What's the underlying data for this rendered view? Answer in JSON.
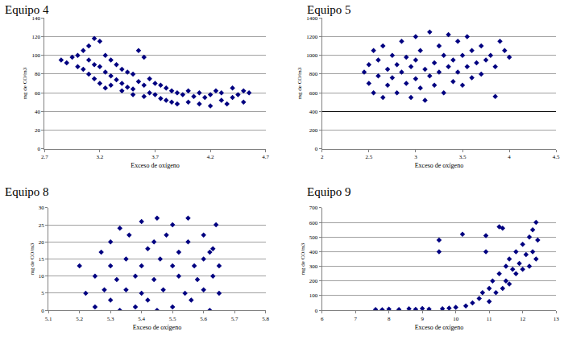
{
  "chart_data": [
    {
      "type": "scatter",
      "title": "Equipo 4",
      "x_label": "Exceso de oxígeno",
      "y_label": "mg de CO/m3",
      "color": "#000080",
      "marker": "diamond",
      "grid": true,
      "xlim": [
        2.7,
        4.7
      ],
      "xticks": [
        2.7,
        3.2,
        3.7,
        4.2,
        4.7
      ],
      "ylim": [
        0,
        140
      ],
      "yticks": [
        0,
        20,
        40,
        60,
        80,
        100,
        120,
        140
      ],
      "x": [
        2.85,
        2.9,
        2.95,
        3.0,
        3.0,
        3.05,
        3.05,
        3.1,
        3.1,
        3.1,
        3.15,
        3.15,
        3.15,
        3.2,
        3.2,
        3.2,
        3.25,
        3.25,
        3.25,
        3.3,
        3.3,
        3.3,
        3.35,
        3.35,
        3.4,
        3.4,
        3.4,
        3.45,
        3.45,
        3.5,
        3.5,
        3.5,
        3.55,
        3.55,
        3.6,
        3.6,
        3.6,
        3.65,
        3.65,
        3.7,
        3.7,
        3.75,
        3.75,
        3.8,
        3.8,
        3.85,
        3.85,
        3.9,
        3.9,
        3.95,
        4.0,
        4.0,
        4.05,
        4.1,
        4.1,
        4.15,
        4.2,
        4.2,
        4.25,
        4.3,
        4.3,
        4.35,
        4.4,
        4.4,
        4.45,
        4.5,
        4.5,
        4.55
      ],
      "values": [
        95,
        92,
        98,
        100,
        88,
        105,
        85,
        110,
        95,
        80,
        118,
        90,
        75,
        115,
        88,
        70,
        100,
        82,
        65,
        95,
        78,
        68,
        90,
        74,
        85,
        70,
        62,
        82,
        66,
        80,
        64,
        58,
        105,
        72,
        98,
        68,
        56,
        75,
        60,
        70,
        58,
        68,
        54,
        65,
        52,
        62,
        50,
        60,
        48,
        58,
        62,
        50,
        56,
        60,
        48,
        55,
        58,
        46,
        62,
        52,
        60,
        48,
        65,
        55,
        58,
        62,
        50,
        60
      ]
    },
    {
      "type": "scatter",
      "title": "Equipo 5",
      "x_label": "Exceso de oxígeno",
      "y_label": "mg de CO/m3",
      "color": "#000080",
      "marker": "diamond",
      "grid": true,
      "hline": 400,
      "xlim": [
        2,
        4.5
      ],
      "xticks": [
        2,
        2.5,
        3,
        3.5,
        4,
        4.5
      ],
      "ylim": [
        0,
        1400
      ],
      "yticks": [
        0,
        200,
        400,
        600,
        800,
        1000,
        1200,
        1400
      ],
      "x": [
        2.45,
        2.5,
        2.5,
        2.55,
        2.55,
        2.6,
        2.6,
        2.65,
        2.65,
        2.7,
        2.7,
        2.75,
        2.75,
        2.8,
        2.8,
        2.85,
        2.85,
        2.9,
        2.9,
        2.95,
        2.95,
        3.0,
        3.0,
        3.0,
        3.05,
        3.05,
        3.1,
        3.1,
        3.15,
        3.15,
        3.2,
        3.2,
        3.25,
        3.25,
        3.3,
        3.3,
        3.35,
        3.35,
        3.4,
        3.4,
        3.45,
        3.45,
        3.5,
        3.5,
        3.55,
        3.55,
        3.6,
        3.6,
        3.65,
        3.7,
        3.7,
        3.75,
        3.8,
        3.85,
        3.9,
        3.95,
        3.85,
        4.0
      ],
      "values": [
        820,
        700,
        900,
        600,
        1050,
        780,
        950,
        550,
        1100,
        850,
        680,
        1000,
        760,
        900,
        600,
        1150,
        820,
        700,
        980,
        550,
        880,
        1200,
        750,
        950,
        650,
        1050,
        850,
        520,
        1250,
        780,
        920,
        680,
        1100,
        820,
        600,
        1000,
        880,
        1220,
        720,
        950,
        1150,
        820,
        1000,
        680,
        880,
        1200,
        760,
        1050,
        920,
        1100,
        800,
        950,
        1000,
        880,
        1150,
        1050,
        560,
        980
      ]
    },
    {
      "type": "scatter",
      "title": "Equipo 8",
      "x_label": "Exceso de oxígeno",
      "y_label": "mg de CO/m3",
      "color": "#000080",
      "marker": "diamond",
      "grid": true,
      "xlim": [
        5.1,
        5.8
      ],
      "xticks": [
        5.1,
        5.2,
        5.3,
        5.4,
        5.5,
        5.6,
        5.7,
        5.8
      ],
      "ylim": [
        0,
        30
      ],
      "yticks": [
        0,
        5,
        10,
        15,
        20,
        25,
        30
      ],
      "x": [
        5.2,
        5.22,
        5.25,
        5.25,
        5.27,
        5.28,
        5.3,
        5.3,
        5.3,
        5.32,
        5.33,
        5.33,
        5.35,
        5.35,
        5.36,
        5.38,
        5.38,
        5.4,
        5.4,
        5.4,
        5.42,
        5.42,
        5.44,
        5.44,
        5.45,
        5.45,
        5.46,
        5.47,
        5.48,
        5.5,
        5.5,
        5.5,
        5.52,
        5.52,
        5.54,
        5.55,
        5.55,
        5.56,
        5.57,
        5.58,
        5.6,
        5.6,
        5.6,
        5.62,
        5.63,
        5.63,
        5.64,
        5.65,
        5.65,
        5.62
      ],
      "values": [
        13,
        5,
        10,
        1,
        17,
        6,
        20,
        3,
        13,
        9,
        24,
        0,
        15,
        6,
        22,
        10,
        1,
        26,
        13,
        5,
        18,
        3,
        20,
        9,
        27,
        0,
        15,
        6,
        22,
        13,
        1,
        25,
        10,
        17,
        5,
        27,
        20,
        3,
        13,
        9,
        22,
        15,
        6,
        0,
        18,
        10,
        25,
        13,
        5,
        17
      ]
    },
    {
      "type": "scatter",
      "title": "Equipo 9",
      "x_label": "Exceso de oxígeno",
      "y_label": "mg de CO/m3",
      "color": "#000080",
      "marker": "diamond",
      "grid": true,
      "xlim": [
        6,
        13
      ],
      "xticks": [
        6,
        7,
        8,
        9,
        10,
        11,
        12,
        13
      ],
      "ylim": [
        0,
        700
      ],
      "yticks": [
        0,
        100,
        200,
        300,
        400,
        500,
        600,
        700
      ],
      "x": [
        7.6,
        7.8,
        8.0,
        8.3,
        8.6,
        8.8,
        9.0,
        9.2,
        9.5,
        9.5,
        9.6,
        9.8,
        10.0,
        10.2,
        10.3,
        10.5,
        10.7,
        10.8,
        10.9,
        10.9,
        11.0,
        11.0,
        11.1,
        11.2,
        11.3,
        11.3,
        11.4,
        11.5,
        11.5,
        11.6,
        11.6,
        11.7,
        11.8,
        11.8,
        11.9,
        12.0,
        12.0,
        12.1,
        12.2,
        12.2,
        12.3,
        12.3,
        12.4,
        12.4,
        12.45,
        11.4
      ],
      "values": [
        5,
        3,
        8,
        5,
        10,
        6,
        12,
        8,
        400,
        480,
        10,
        15,
        20,
        520,
        30,
        50,
        80,
        120,
        510,
        400,
        150,
        60,
        200,
        120,
        570,
        250,
        150,
        300,
        200,
        350,
        180,
        280,
        400,
        250,
        320,
        450,
        280,
        380,
        500,
        300,
        550,
        400,
        600,
        350,
        480,
        560
      ]
    }
  ]
}
